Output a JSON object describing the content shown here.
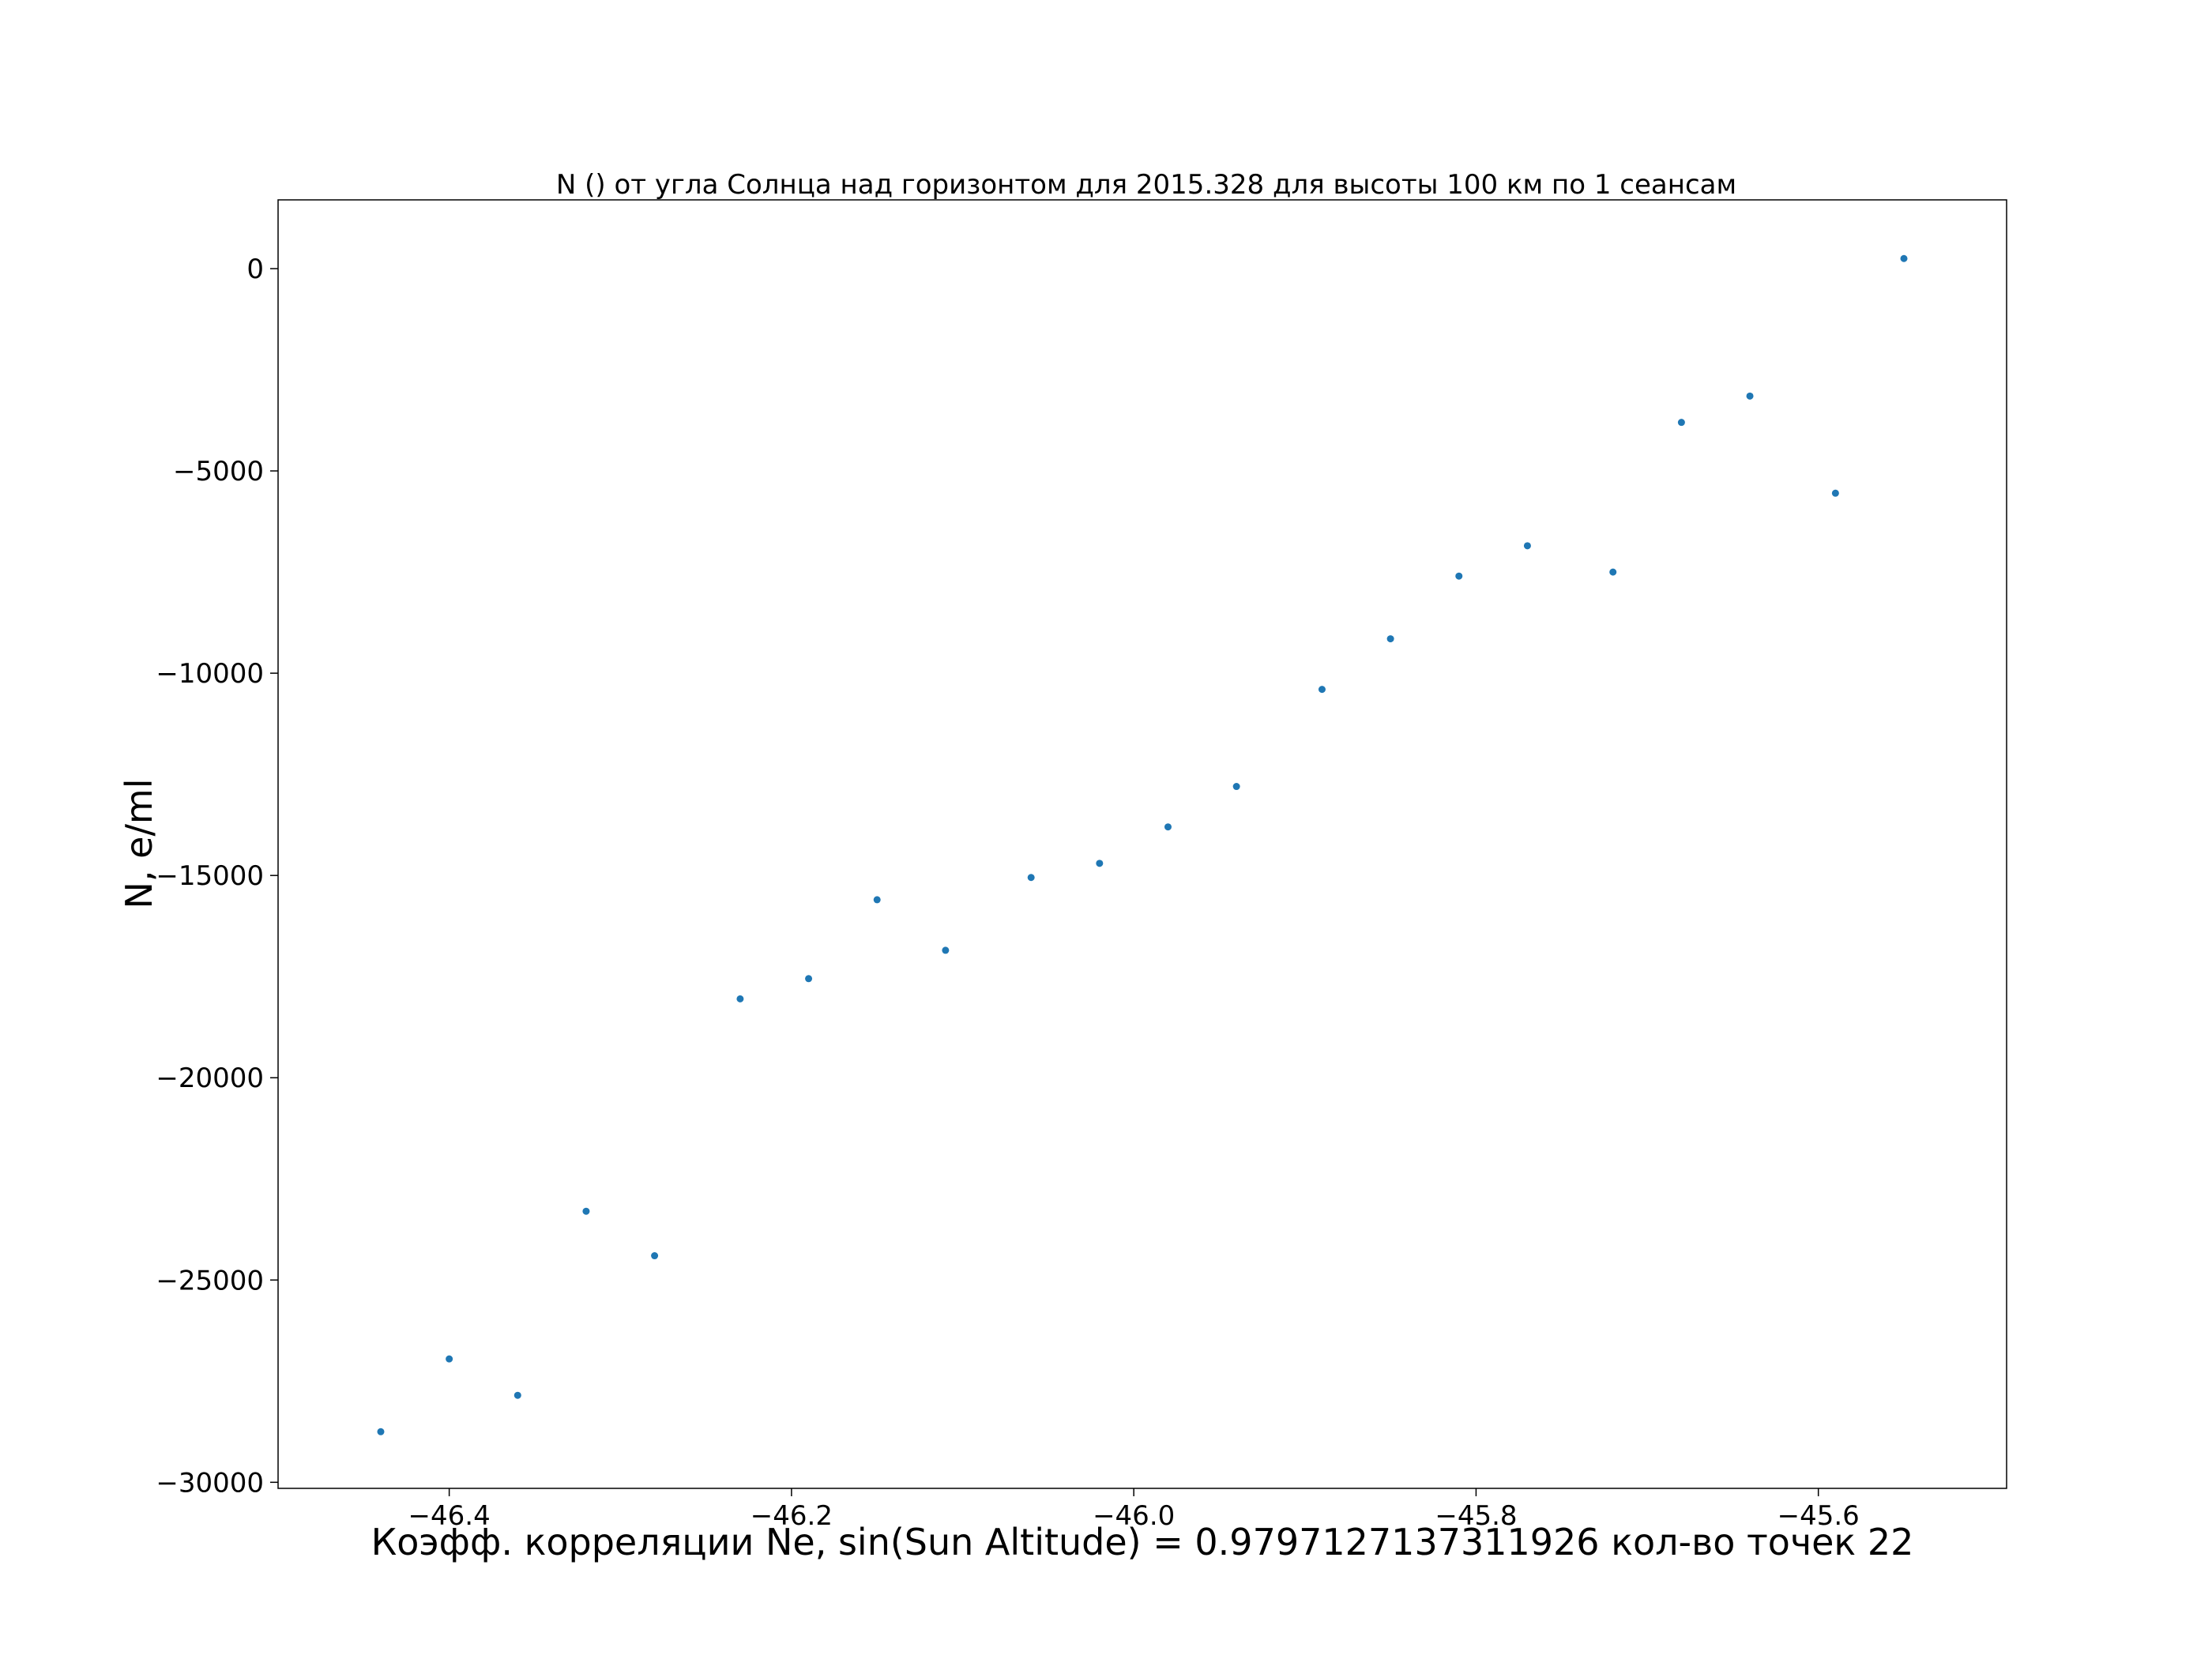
{
  "chart_data": {
    "type": "scatter",
    "title": "N () от угла Солнца над горизонтом для 2015.328 для высоты 100 км по 1 сеансам",
    "xlabel": "Коэфф. корреляции Ne, sin(Sun Altitude) = 0.9797127137311926 кол-во точек 22",
    "ylabel": "N, e/ml",
    "xlim": [
      -46.5,
      -45.49
    ],
    "ylim": [
      -30150,
      1700
    ],
    "xticks": [
      -46.4,
      -46.2,
      -46.0,
      -45.8,
      -45.6
    ],
    "xtick_labels": [
      "−46.4",
      "−46.2",
      "−46.0",
      "−45.8",
      "−45.6"
    ],
    "yticks": [
      0,
      -5000,
      -10000,
      -15000,
      -20000,
      -25000,
      -30000
    ],
    "ytick_labels": [
      "0",
      "−5000",
      "−10000",
      "−15000",
      "−20000",
      "−25000",
      "−30000"
    ],
    "grid": false,
    "marker_color": "#1f77b4",
    "series": [
      {
        "x": [
          -46.44,
          -46.4,
          -46.36,
          -46.32,
          -46.28,
          -46.23,
          -46.19,
          -46.15,
          -46.11,
          -46.06,
          -46.02,
          -45.98,
          -45.94,
          -45.89,
          -45.85,
          -45.81,
          -45.77,
          -45.72,
          -45.68,
          -45.64,
          -45.59,
          -45.55
        ],
        "y": [
          -28750,
          -26950,
          -27850,
          -23300,
          -24400,
          -18050,
          -17550,
          -15600,
          -16850,
          -15050,
          -14700,
          -13800,
          -12800,
          -10400,
          -9150,
          -7600,
          -6850,
          -7500,
          -3800,
          -3150,
          -5550,
          250
        ]
      }
    ]
  }
}
